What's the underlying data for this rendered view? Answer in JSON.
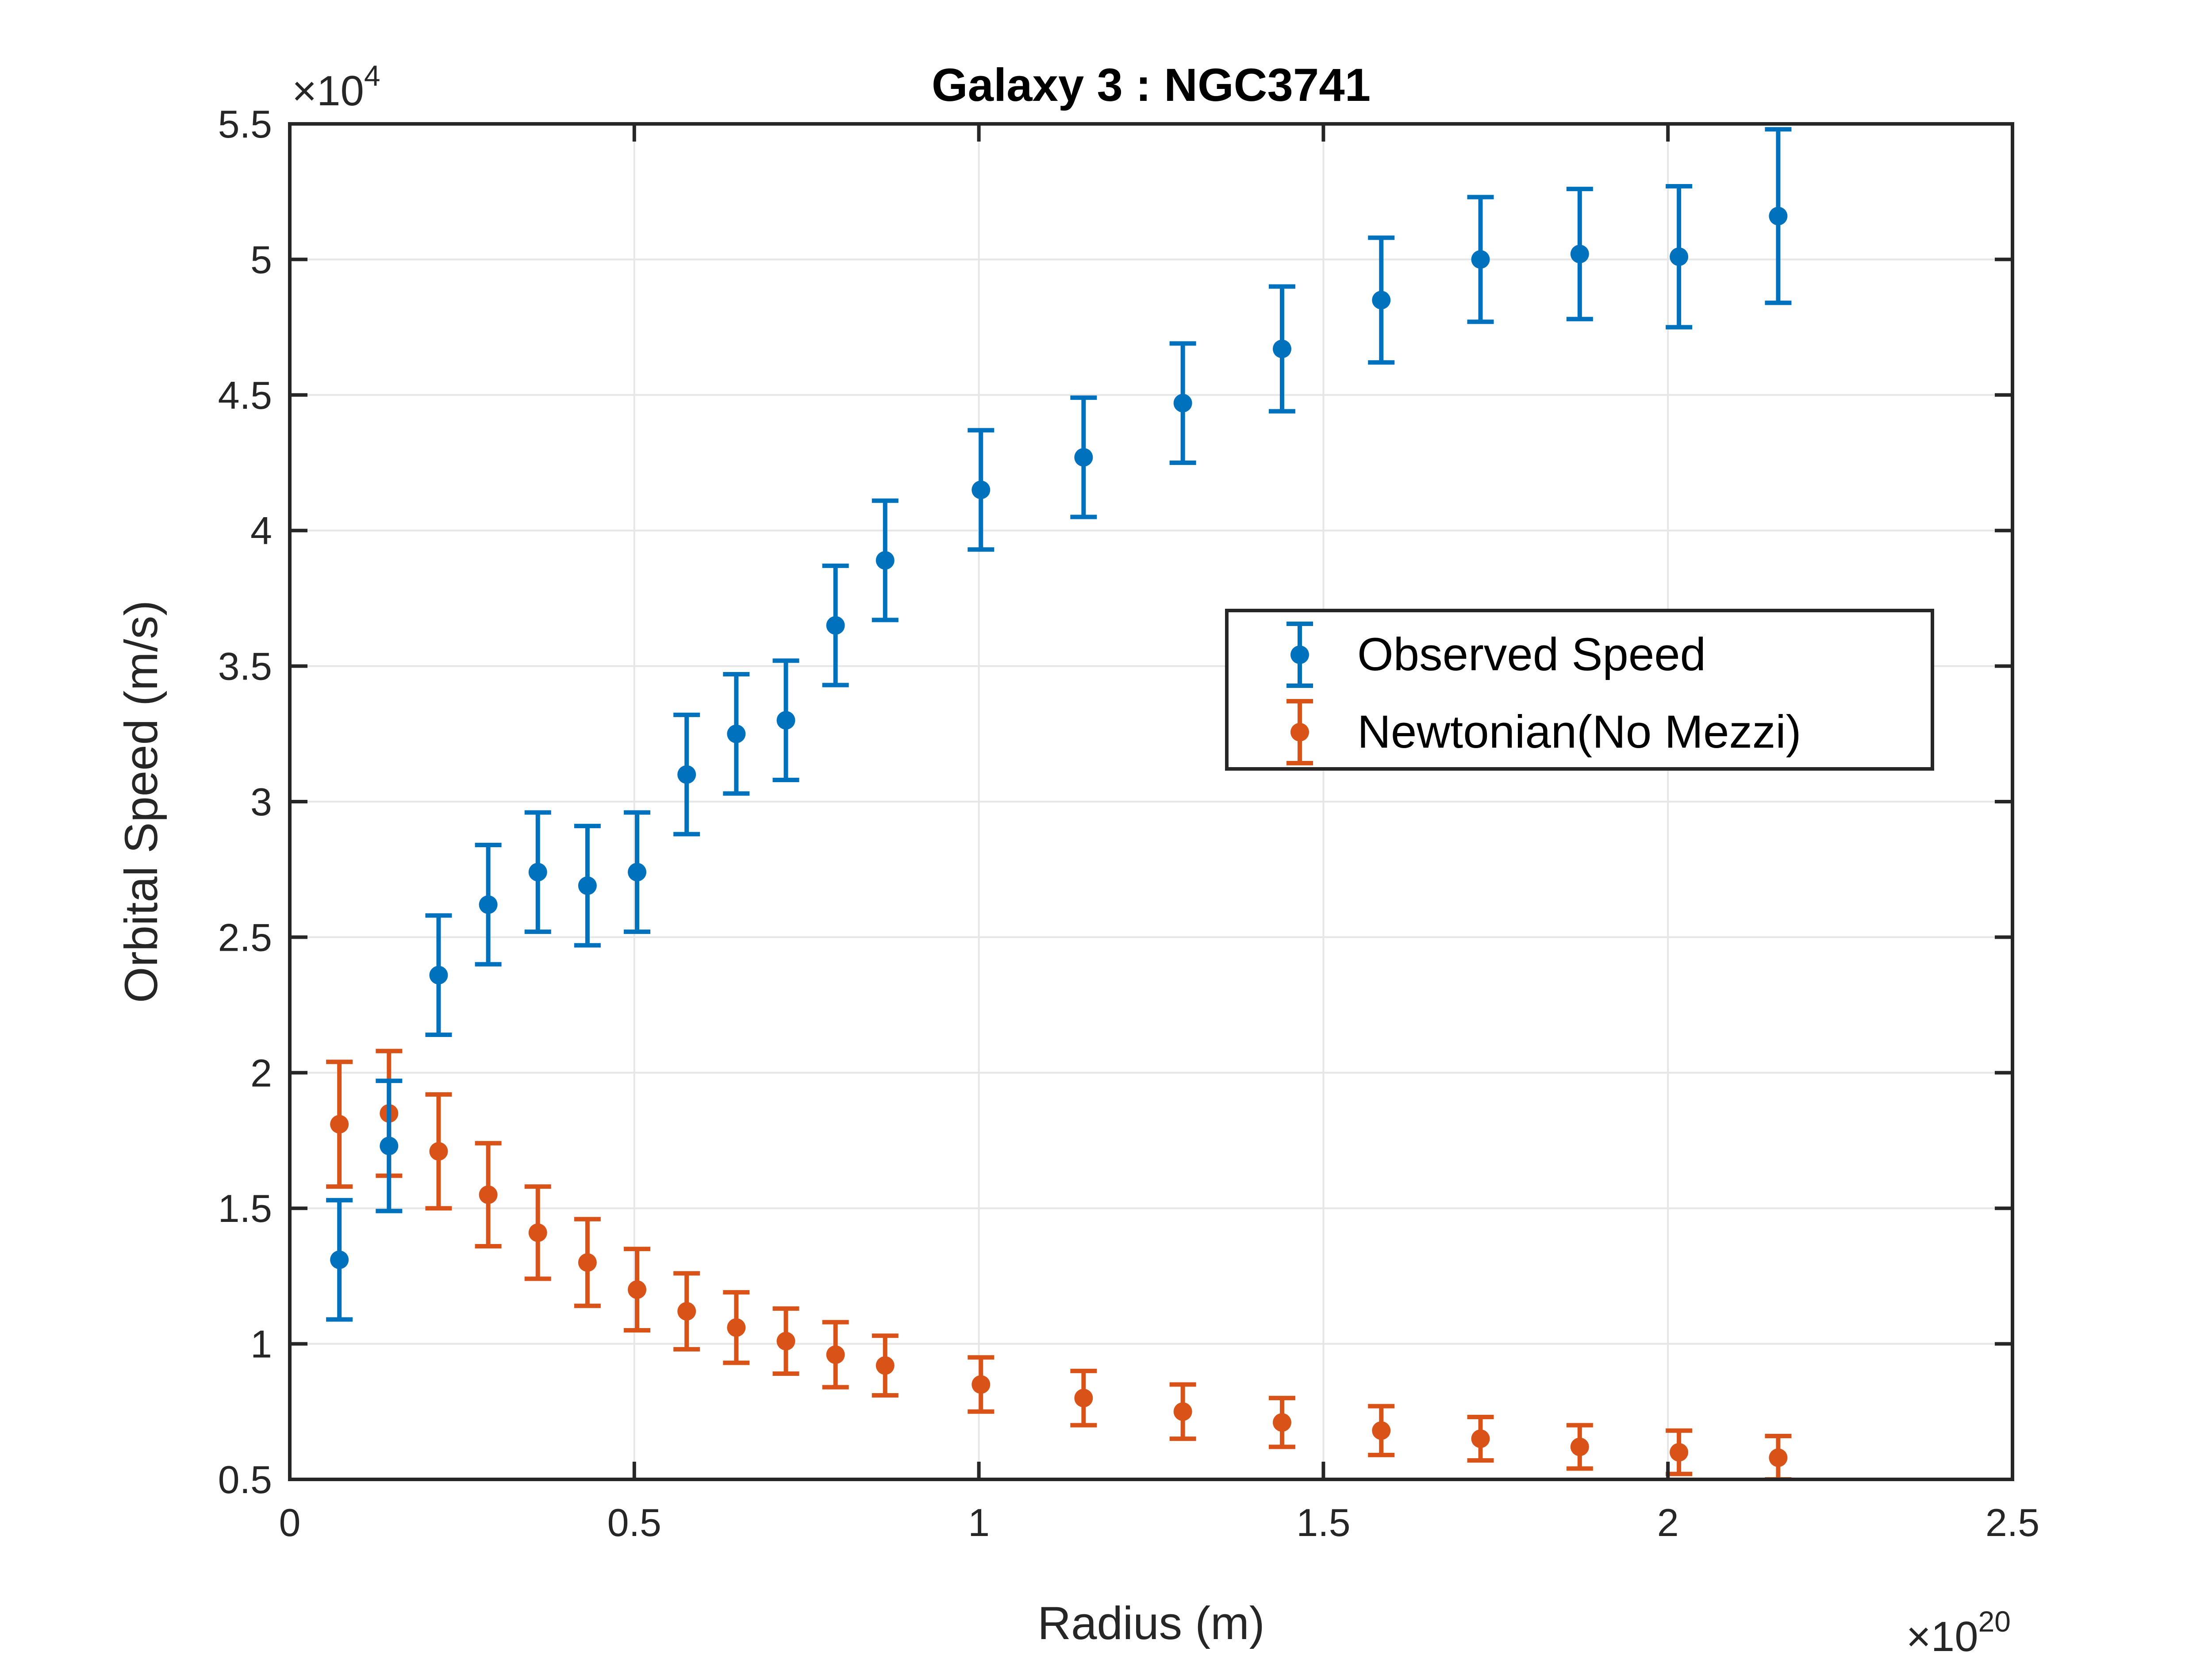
{
  "chart_data": {
    "type": "scatter",
    "title": "Galaxy 3 : NGC3741",
    "xlabel": "Radius (m)",
    "ylabel": "Orbital Speed (m/s)",
    "x_exponent": "20",
    "y_exponent": "4",
    "xlim": [
      0,
      2.5
    ],
    "ylim": [
      0.5,
      5.5
    ],
    "x_ticks": [
      "0",
      "0.5",
      "1",
      "1.5",
      "2",
      "2.5"
    ],
    "y_ticks": [
      "0.5",
      "1",
      "1.5",
      "2",
      "2.5",
      "3",
      "3.5",
      "4",
      "4.5",
      "5",
      "5.5"
    ],
    "grid": true,
    "legend_position": "center-right",
    "series": [
      {
        "name": "Observed Speed",
        "color": "#0072BD",
        "x": [
          0.072,
          0.144,
          0.216,
          0.288,
          0.36,
          0.432,
          0.504,
          0.576,
          0.648,
          0.72,
          0.792,
          0.864,
          1.003,
          1.152,
          1.296,
          1.44,
          1.584,
          1.728,
          1.872,
          2.016,
          2.16
        ],
        "y": [
          1.31,
          1.73,
          2.36,
          2.62,
          2.74,
          2.69,
          2.74,
          3.1,
          3.25,
          3.3,
          3.65,
          3.89,
          4.15,
          4.27,
          4.47,
          4.67,
          4.85,
          5.0,
          5.02,
          5.01,
          5.16
        ],
        "err": [
          0.22,
          0.24,
          0.22,
          0.22,
          0.22,
          0.22,
          0.22,
          0.22,
          0.22,
          0.22,
          0.22,
          0.22,
          0.22,
          0.22,
          0.22,
          0.23,
          0.23,
          0.23,
          0.24,
          0.26,
          0.32
        ]
      },
      {
        "name": "Newtonian(No Mezzi)",
        "color": "#D95319",
        "x": [
          0.072,
          0.144,
          0.216,
          0.288,
          0.36,
          0.432,
          0.504,
          0.576,
          0.648,
          0.72,
          0.792,
          0.864,
          1.003,
          1.152,
          1.296,
          1.44,
          1.584,
          1.728,
          1.872,
          2.016,
          2.16
        ],
        "y": [
          1.81,
          1.85,
          1.71,
          1.55,
          1.41,
          1.3,
          1.2,
          1.12,
          1.06,
          1.01,
          0.96,
          0.92,
          0.85,
          0.8,
          0.75,
          0.71,
          0.68,
          0.65,
          0.62,
          0.6,
          0.58
        ],
        "err": [
          0.23,
          0.23,
          0.21,
          0.19,
          0.17,
          0.16,
          0.15,
          0.14,
          0.13,
          0.12,
          0.12,
          0.11,
          0.1,
          0.1,
          0.1,
          0.09,
          0.09,
          0.08,
          0.08,
          0.08,
          0.08
        ]
      }
    ]
  }
}
